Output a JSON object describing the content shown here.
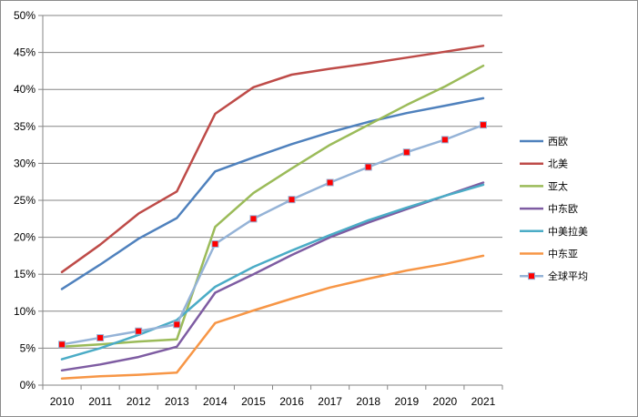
{
  "chart_data": {
    "type": "line",
    "title": "",
    "xlabel": "",
    "ylabel": "",
    "x": [
      "2010",
      "2011",
      "2012",
      "2013",
      "2014",
      "2015",
      "2016",
      "2017",
      "2018",
      "2019",
      "2020",
      "2021"
    ],
    "ylim": [
      0,
      50
    ],
    "y_ticks": [
      "0%",
      "5%",
      "10%",
      "15%",
      "20%",
      "25%",
      "30%",
      "35%",
      "40%",
      "45%",
      "50%"
    ],
    "grid": "horizontal",
    "legend_position": "right",
    "series": [
      {
        "name": "西欧",
        "color": "#4f81bd",
        "marker": "none",
        "values": [
          13.0,
          16.3,
          19.8,
          22.6,
          28.9,
          30.8,
          32.6,
          34.2,
          35.6,
          36.8,
          37.8,
          38.8
        ]
      },
      {
        "name": "北美",
        "color": "#be4b48",
        "marker": "none",
        "values": [
          15.3,
          19.0,
          23.2,
          26.2,
          36.7,
          40.3,
          42.0,
          42.8,
          43.5,
          44.3,
          45.1,
          45.9
        ]
      },
      {
        "name": "亚太",
        "color": "#9bbb59",
        "marker": "none",
        "values": [
          5.2,
          5.5,
          5.9,
          6.2,
          21.4,
          26.0,
          29.3,
          32.5,
          35.2,
          37.9,
          40.4,
          43.2
        ]
      },
      {
        "name": "中东欧",
        "color": "#7e5ca2",
        "marker": "none",
        "values": [
          2.0,
          2.8,
          3.8,
          5.2,
          12.5,
          15.0,
          17.6,
          20.0,
          22.0,
          23.8,
          25.6,
          27.4
        ]
      },
      {
        "name": "中美拉美",
        "color": "#4bacc6",
        "marker": "none",
        "values": [
          3.5,
          5.0,
          6.8,
          8.8,
          13.3,
          16.0,
          18.2,
          20.3,
          22.3,
          24.0,
          25.6,
          27.1
        ]
      },
      {
        "name": "中东亚",
        "color": "#f79646",
        "marker": "none",
        "values": [
          0.9,
          1.2,
          1.4,
          1.7,
          8.4,
          10.1,
          11.7,
          13.2,
          14.4,
          15.5,
          16.4,
          17.5
        ]
      },
      {
        "name": "全球平均",
        "color": "#95b3d7",
        "marker": "square",
        "marker_color": "#ff0000",
        "values": [
          5.5,
          6.4,
          7.3,
          8.2,
          19.1,
          22.5,
          25.1,
          27.4,
          29.5,
          31.5,
          33.2,
          35.2
        ]
      }
    ]
  }
}
